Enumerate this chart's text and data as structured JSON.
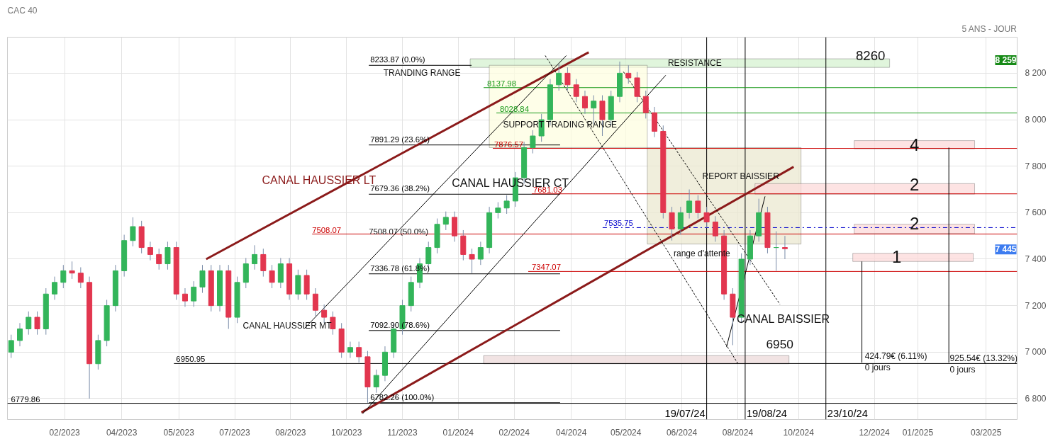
{
  "chart_data": {
    "type": "candlestick",
    "title": "CAC 40",
    "subtitle": "5 ANS - JOUR",
    "x": [
      "2023-01-06",
      "2023-01-13",
      "2023-01-20",
      "2023-01-27",
      "2023-02-03",
      "2023-02-10",
      "2023-02-17",
      "2023-02-24",
      "2023-03-03",
      "2023-03-10",
      "2023-03-17",
      "2023-03-24",
      "2023-03-31",
      "2023-04-07",
      "2023-04-14",
      "2023-04-21",
      "2023-04-28",
      "2023-05-05",
      "2023-05-12",
      "2023-05-19",
      "2023-05-26",
      "2023-06-02",
      "2023-06-09",
      "2023-06-16",
      "2023-06-23",
      "2023-06-30",
      "2023-07-07",
      "2023-07-14",
      "2023-07-21",
      "2023-07-28",
      "2023-08-04",
      "2023-08-11",
      "2023-08-18",
      "2023-08-25",
      "2023-09-01",
      "2023-09-08",
      "2023-09-15",
      "2023-09-22",
      "2023-09-29",
      "2023-10-06",
      "2023-10-13",
      "2023-10-20",
      "2023-10-27",
      "2023-11-03",
      "2023-11-10",
      "2023-11-17",
      "2023-11-24",
      "2023-12-01",
      "2023-12-08",
      "2023-12-15",
      "2023-12-22",
      "2023-12-29",
      "2024-01-05",
      "2024-01-12",
      "2024-01-19",
      "2024-01-26",
      "2024-02-02",
      "2024-02-09",
      "2024-02-16",
      "2024-02-23",
      "2024-03-01",
      "2024-03-08",
      "2024-03-15",
      "2024-03-22",
      "2024-03-29",
      "2024-04-05",
      "2024-04-12",
      "2024-04-19",
      "2024-04-26",
      "2024-05-03",
      "2024-05-10",
      "2024-05-17",
      "2024-05-24",
      "2024-05-31",
      "2024-06-07",
      "2024-06-14",
      "2024-06-21",
      "2024-06-28",
      "2024-07-05",
      "2024-07-12",
      "2024-07-19",
      "2024-07-26",
      "2024-08-02",
      "2024-08-09",
      "2024-08-16",
      "2024-08-23",
      "2024-08-30",
      "2024-09-06",
      "2024-09-13",
      "2024-09-20"
    ],
    "ohlc": [
      [
        7000,
        7075,
        6975,
        7050
      ],
      [
        7050,
        7125,
        7025,
        7100
      ],
      [
        7100,
        7175,
        7075,
        7150
      ],
      [
        7150,
        7175,
        7075,
        7100
      ],
      [
        7100,
        7275,
        7075,
        7250
      ],
      [
        7250,
        7325,
        7225,
        7300
      ],
      [
        7300,
        7375,
        7275,
        7350
      ],
      [
        7350,
        7390,
        7315,
        7340
      ],
      [
        7340,
        7365,
        7275,
        7300
      ],
      [
        7300,
        7325,
        6800,
        6950
      ],
      [
        6950,
        7075,
        6925,
        7050
      ],
      [
        7050,
        7225,
        7025,
        7200
      ],
      [
        7200,
        7375,
        7175,
        7350
      ],
      [
        7350,
        7505,
        7325,
        7480
      ],
      [
        7480,
        7580,
        7455,
        7540
      ],
      [
        7540,
        7565,
        7425,
        7450
      ],
      [
        7450,
        7475,
        7395,
        7420
      ],
      [
        7420,
        7445,
        7355,
        7380
      ],
      [
        7380,
        7475,
        7355,
        7450
      ],
      [
        7450,
        7475,
        7225,
        7250
      ],
      [
        7250,
        7275,
        7195,
        7220
      ],
      [
        7220,
        7305,
        7195,
        7280
      ],
      [
        7280,
        7375,
        7255,
        7350
      ],
      [
        7350,
        7375,
        7175,
        7200
      ],
      [
        7200,
        7375,
        7175,
        7350
      ],
      [
        7350,
        7375,
        7100,
        7150
      ],
      [
        7150,
        7325,
        7125,
        7300
      ],
      [
        7300,
        7405,
        7275,
        7380
      ],
      [
        7380,
        7460,
        7355,
        7420
      ],
      [
        7420,
        7445,
        7325,
        7350
      ],
      [
        7350,
        7375,
        7275,
        7300
      ],
      [
        7300,
        7405,
        7275,
        7380
      ],
      [
        7380,
        7405,
        7225,
        7250
      ],
      [
        7250,
        7355,
        7225,
        7330
      ],
      [
        7330,
        7355,
        7225,
        7250
      ],
      [
        7250,
        7275,
        7155,
        7180
      ],
      [
        7180,
        7205,
        7125,
        7150
      ],
      [
        7150,
        7175,
        7075,
        7100
      ],
      [
        7100,
        7125,
        6975,
        7000
      ],
      [
        7000,
        7045,
        6975,
        7020
      ],
      [
        7020,
        7045,
        6955,
        6980
      ],
      [
        6980,
        7005,
        6782,
        6850
      ],
      [
        6850,
        6925,
        6825,
        6900
      ],
      [
        6900,
        7025,
        6875,
        7000
      ],
      [
        7000,
        7125,
        6975,
        7100
      ],
      [
        7100,
        7225,
        7075,
        7200
      ],
      [
        7200,
        7325,
        7175,
        7300
      ],
      [
        7300,
        7405,
        7275,
        7380
      ],
      [
        7380,
        7475,
        7355,
        7450
      ],
      [
        7450,
        7575,
        7425,
        7550
      ],
      [
        7550,
        7605,
        7525,
        7580
      ],
      [
        7580,
        7605,
        7475,
        7500
      ],
      [
        7500,
        7525,
        7395,
        7420
      ],
      [
        7420,
        7445,
        7340,
        7400
      ],
      [
        7400,
        7475,
        7375,
        7450
      ],
      [
        7450,
        7625,
        7425,
        7600
      ],
      [
        7600,
        7645,
        7575,
        7620
      ],
      [
        7620,
        7675,
        7595,
        7650
      ],
      [
        7650,
        7775,
        7625,
        7750
      ],
      [
        7750,
        7905,
        7725,
        7880
      ],
      [
        7880,
        7955,
        7855,
        7930
      ],
      [
        7930,
        8025,
        7905,
        8000
      ],
      [
        8000,
        8175,
        7975,
        8150
      ],
      [
        8150,
        8240,
        8125,
        8200
      ],
      [
        8200,
        8225,
        8125,
        8150
      ],
      [
        8150,
        8175,
        8075,
        8100
      ],
      [
        8100,
        8125,
        8025,
        8050
      ],
      [
        8050,
        8105,
        7980,
        8080
      ],
      [
        8080,
        8105,
        7930,
        8000
      ],
      [
        8000,
        8125,
        7975,
        8100
      ],
      [
        8100,
        8250,
        8075,
        8200
      ],
      [
        8200,
        8234,
        8155,
        8180
      ],
      [
        8180,
        8205,
        8075,
        8100
      ],
      [
        8100,
        8125,
        8005,
        8030
      ],
      [
        8030,
        8055,
        7925,
        7950
      ],
      [
        7950,
        7975,
        7575,
        7600
      ],
      [
        7600,
        7625,
        7480,
        7530
      ],
      [
        7530,
        7625,
        7505,
        7600
      ],
      [
        7600,
        7700,
        7575,
        7650
      ],
      [
        7650,
        7675,
        7575,
        7600
      ],
      [
        7600,
        7625,
        7535,
        7560
      ],
      [
        7560,
        7585,
        7475,
        7500
      ],
      [
        7500,
        7525,
        7225,
        7250
      ],
      [
        7250,
        7275,
        7030,
        7150
      ],
      [
        7150,
        7425,
        7125,
        7400
      ],
      [
        7400,
        7525,
        7375,
        7500
      ],
      [
        7500,
        7660,
        7475,
        7600
      ],
      [
        7600,
        7625,
        7425,
        7450
      ],
      [
        7450,
        7520,
        7350,
        7450
      ],
      [
        7450,
        7500,
        7400,
        7445
      ]
    ],
    "colors": [
      "#33b55a",
      "#33b55a",
      "#33b55a",
      "#e2364f",
      "#33b55a",
      "#33b55a",
      "#33b55a",
      "#e2364f",
      "#e2364f",
      "#e2364f",
      "#33b55a",
      "#33b55a",
      "#33b55a",
      "#33b55a",
      "#33b55a",
      "#e2364f",
      "#e2364f",
      "#e2364f",
      "#33b55a",
      "#e2364f",
      "#e2364f",
      "#33b55a",
      "#33b55a",
      "#e2364f",
      "#33b55a",
      "#e2364f",
      "#33b55a",
      "#33b55a",
      "#33b55a",
      "#e2364f",
      "#e2364f",
      "#33b55a",
      "#e2364f",
      "#33b55a",
      "#e2364f",
      "#e2364f",
      "#e2364f",
      "#e2364f",
      "#e2364f",
      "#33b55a",
      "#e2364f",
      "#e2364f",
      "#33b55a",
      "#33b55a",
      "#33b55a",
      "#33b55a",
      "#33b55a",
      "#33b55a",
      "#33b55a",
      "#33b55a",
      "#33b55a",
      "#e2364f",
      "#e2364f",
      "#e2364f",
      "#33b55a",
      "#33b55a",
      "#33b55a",
      "#33b55a",
      "#33b55a",
      "#33b55a",
      "#33b55a",
      "#33b55a",
      "#33b55a",
      "#33b55a",
      "#e2364f",
      "#e2364f",
      "#e2364f",
      "#33b55a",
      "#e2364f",
      "#33b55a",
      "#33b55a",
      "#e2364f",
      "#e2364f",
      "#e2364f",
      "#e2364f",
      "#e2364f",
      "#e2364f",
      "#33b55a",
      "#33b55a",
      "#e2364f",
      "#e2364f",
      "#e2364f",
      "#e2364f",
      "#e2364f",
      "#33b55a",
      "#33b55a",
      "#33b55a",
      "#e2364f",
      "#33b55a",
      "#e2364f"
    ],
    "series": [
      {
        "type": "line",
        "color": "#8b1a1a",
        "x": [
          "2023-06-12",
          "2024-04-15"
        ],
        "values": [
          7400,
          8290
        ]
      },
      {
        "type": "line",
        "color": "#8b1a1a",
        "x": [
          "2023-10-15",
          "2024-09-27"
        ],
        "values": [
          6740,
          7797
        ]
      },
      {
        "type": "line",
        "color": "#000000",
        "x": [
          "2023-08-30",
          "2024-03-28"
        ],
        "values": [
          7101,
          8276
        ]
      },
      {
        "type": "line",
        "color": "#000000",
        "x": [
          "2023-10-16",
          "2024-06-16"
        ],
        "values": [
          6735,
          8191
        ]
      },
      {
        "type": "line",
        "color": "#000000",
        "line_style": "dashed",
        "x": [
          "2024-03-11",
          "2024-08-13"
        ],
        "values": [
          8276,
          6952
        ]
      },
      {
        "type": "line",
        "color": "#000000",
        "line_style": "dashed",
        "x": [
          "2024-05-13",
          "2024-09-16"
        ],
        "values": [
          8206,
          7206
        ]
      },
      {
        "type": "line",
        "color": "#000000",
        "x": [
          "2024-08-04",
          "2024-09-04"
        ],
        "values": [
          7022,
          7670
        ]
      },
      {
        "type": "line",
        "color": "#000000",
        "x": [
          "2024-11-21",
          "2024-11-21"
        ],
        "values": [
          6955,
          7390
        ]
      },
      {
        "type": "line",
        "color": "#000000",
        "x": [
          "2025-01-30",
          "2025-01-30"
        ],
        "values": [
          6955,
          7880
        ]
      }
    ],
    "ref_lines": [
      {
        "axis": "y",
        "value": 6779.86,
        "label": "6779.86",
        "color": "#000000"
      },
      {
        "axis": "y",
        "value": 6782.26,
        "label": "6782.26  (100.0%)",
        "color": "#000000"
      },
      {
        "axis": "y",
        "value": 6950.95,
        "label": "6950.95",
        "color": "#000000"
      },
      {
        "axis": "y",
        "value": 7092.9,
        "label": "7092.90  (78.6%)",
        "color": "#000000"
      },
      {
        "axis": "y",
        "value": 7336.78,
        "label": "7336.78  (61.8%)",
        "color": "#000000"
      },
      {
        "axis": "y",
        "value": 7347.07,
        "label": "7347.07",
        "color": "#cc0000"
      },
      {
        "axis": "y",
        "value": 7508.07,
        "label": "7508.07",
        "color": "#cc0000"
      },
      {
        "axis": "y",
        "value": 7535.75,
        "label": "7535.75",
        "color": "#0000cc",
        "line_style": "dashdot"
      },
      {
        "axis": "y",
        "value": 7679.36,
        "label": "7679.36  (38.2%)",
        "color": "#000000"
      },
      {
        "axis": "y",
        "value": 7681.03,
        "label": "7681.03",
        "color": "#cc0000"
      },
      {
        "axis": "y",
        "value": 7876.57,
        "label": "7876.57",
        "color": "#cc0000"
      },
      {
        "axis": "y",
        "value": 7891.29,
        "label": "7891.29  (23.6%)",
        "color": "#000000"
      },
      {
        "axis": "y",
        "value": 8028.84,
        "label": "8028.84",
        "color": "#1a9a1a"
      },
      {
        "axis": "y",
        "value": 8137.98,
        "label": "8137.98",
        "color": "#1a9a1a"
      },
      {
        "axis": "y",
        "value": 8233.87,
        "label": "8233.87  (0.0%)",
        "color": "#000000"
      },
      {
        "axis": "x",
        "value": "2024-07-19",
        "label": "19/07/24",
        "color": "#000000"
      },
      {
        "axis": "x",
        "value": "2024-08-19",
        "label": "19/08/24",
        "color": "#000000"
      },
      {
        "axis": "x",
        "value": "2024-10-23",
        "label": "23/10/24",
        "color": "#000000"
      }
    ],
    "bands": [
      {
        "axis": "y",
        "from": 8225,
        "to": 8262,
        "label": "RESISTANCE",
        "color": "#d6f2d0"
      },
      {
        "axis": "y",
        "from": 7880,
        "to": 8234,
        "label": null,
        "color": "#fdfde0"
      },
      {
        "axis": "y",
        "from": 7465,
        "to": 7880,
        "label": "REPORT BAISSIER",
        "color": "#ebe8d0"
      },
      {
        "axis": "y",
        "from": 6950,
        "to": 6985,
        "label": "6950",
        "color": "#ecdada"
      },
      {
        "axis": "y",
        "from": 7875,
        "to": 7910,
        "label": "4",
        "color": "#fcd9d9"
      },
      {
        "axis": "y",
        "from": 7680,
        "to": 7725,
        "label": "2",
        "color": "#fcd9d9"
      },
      {
        "axis": "y",
        "from": 7510,
        "to": 7550,
        "label": "2",
        "color": "#fcd9d9"
      },
      {
        "axis": "y",
        "from": 7390,
        "to": 7425,
        "label": "1",
        "color": "#fcd9d9"
      }
    ],
    "annotations": [
      "CANAL HAUSSIER LT",
      "CANAL HAUSSIER CT",
      "CANAL HAUSSIER MT",
      "CANAL BAISSIER",
      "SUPPORT TRADING RANGE",
      "TRANDING RANGE",
      "range d'attente",
      "8260",
      "424.79€ (6.11%)",
      "0 jours",
      "925.54€ (13.32%)",
      "0 jours",
      "7508.07  (50.0%)",
      "8 259",
      "7 445"
    ],
    "xlim": [
      "2023-01-03",
      "2025-03-26"
    ],
    "xticks": [
      {
        "value": "2023-02-18",
        "label": "02/2023"
      },
      {
        "value": "2023-04-05",
        "label": "04/2023"
      },
      {
        "value": "2023-05-21",
        "label": "05/2023"
      },
      {
        "value": "2023-07-05",
        "label": "07/2023"
      },
      {
        "value": "2023-08-19",
        "label": "08/2023"
      },
      {
        "value": "2023-10-03",
        "label": "10/2023"
      },
      {
        "value": "2023-11-17",
        "label": "11/2023"
      },
      {
        "value": "2024-01-01",
        "label": "01/2024"
      },
      {
        "value": "2024-02-15",
        "label": "02/2024"
      },
      {
        "value": "2024-04-01",
        "label": "04/2024"
      },
      {
        "value": "2024-05-15",
        "label": "05/2024"
      },
      {
        "value": "2024-06-29",
        "label": "06/2024"
      },
      {
        "value": "2024-08-13",
        "label": "08/2024"
      },
      {
        "value": "2024-10-01",
        "label": "10/2024"
      },
      {
        "value": "2024-12-01",
        "label": "12/2024"
      },
      {
        "value": "2025-01-05",
        "label": "01/2025"
      },
      {
        "value": "2025-03-01",
        "label": "03/2025"
      }
    ],
    "ylim": [
      6710,
      8355
    ],
    "yticks": [
      {
        "value": 6800,
        "label": "6 800"
      },
      {
        "value": 7000,
        "label": "7 000"
      },
      {
        "value": 7200,
        "label": "7 200"
      },
      {
        "value": 7400,
        "label": "7 400"
      },
      {
        "value": 7600,
        "label": "7 600"
      },
      {
        "value": 7800,
        "label": "7 800"
      },
      {
        "value": 8000,
        "label": "8 000"
      },
      {
        "value": 8200,
        "label": "8 200"
      }
    ],
    "grid": true
  }
}
